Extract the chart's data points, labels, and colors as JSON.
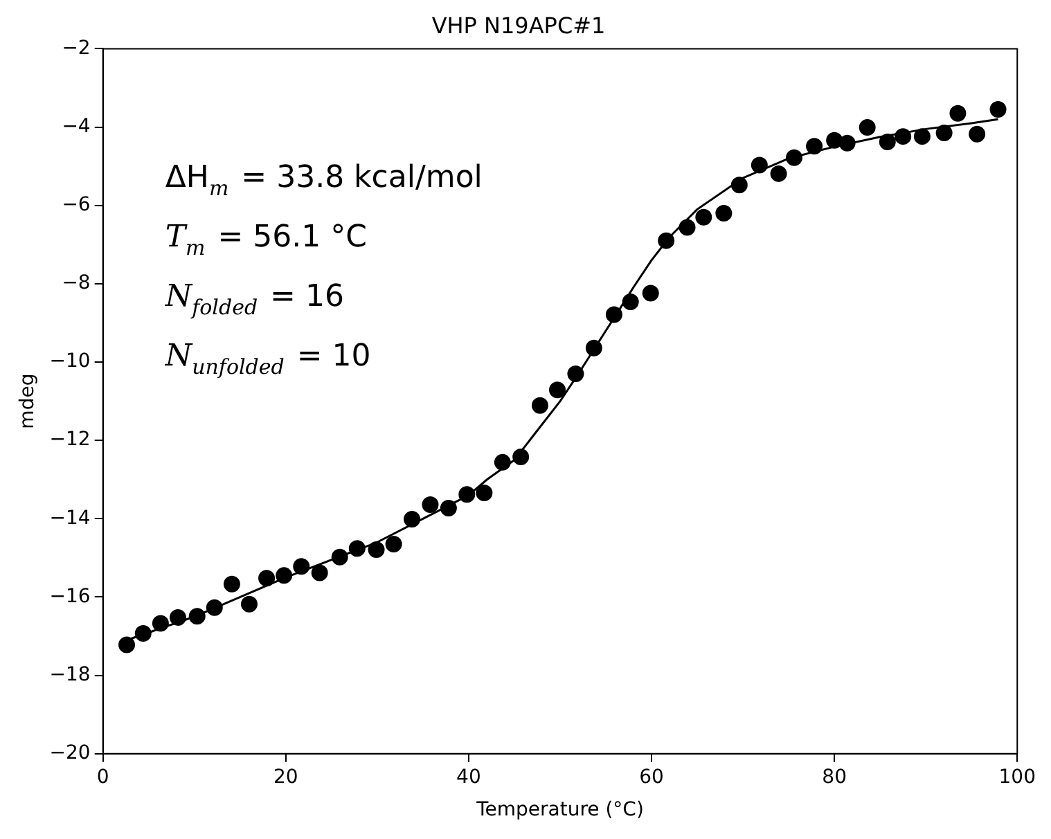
{
  "chart_data": {
    "type": "scatter",
    "title": "VHP N19APC#1",
    "xlabel": "Temperature (°C)",
    "ylabel": "mdeg",
    "annotations": [
      "ΔH$_{m}$ = 33.8 kcal/mol",
      "T$_{m}$ = 56.1 °C",
      "N$_{folded}$ = 16",
      "N$_{unfolded}$ = 10"
    ],
    "xlim": [
      0,
      100
    ],
    "xticks": [
      0,
      20,
      40,
      60,
      80,
      100
    ],
    "ylim": [
      -20,
      -2
    ],
    "yticks": [
      -20,
      -18,
      -16,
      -14,
      -12,
      -10,
      -8,
      -6,
      -4,
      -2
    ],
    "grid": false,
    "legend": false,
    "series": [
      {
        "type": "scatter",
        "marker": "circle",
        "color": "#000000",
        "x": [
          2.6,
          4.4,
          6.3,
          8.2,
          10.3,
          12.2,
          14.1,
          16.0,
          17.9,
          19.8,
          21.7,
          23.7,
          25.9,
          27.8,
          29.9,
          31.8,
          33.8,
          35.8,
          37.8,
          39.8,
          41.7,
          43.7,
          45.7,
          47.8,
          49.7,
          51.7,
          53.7,
          55.9,
          57.7,
          59.9,
          61.6,
          63.9,
          65.7,
          67.9,
          69.6,
          71.8,
          73.9,
          75.6,
          77.8,
          80.0,
          81.4,
          83.6,
          85.8,
          87.5,
          89.6,
          92.0,
          93.5,
          95.6,
          97.9
        ],
        "values": [
          -17.22,
          -16.93,
          -16.67,
          -16.52,
          -16.49,
          -16.27,
          -15.67,
          -16.18,
          -15.52,
          -15.45,
          -15.22,
          -15.38,
          -14.98,
          -14.76,
          -14.79,
          -14.65,
          -14.01,
          -13.64,
          -13.73,
          -13.38,
          -13.34,
          -12.56,
          -12.42,
          -11.11,
          -10.71,
          -10.3,
          -9.64,
          -8.79,
          -8.46,
          -8.24,
          -6.9,
          -6.56,
          -6.3,
          -6.2,
          -5.48,
          -4.97,
          -5.19,
          -4.78,
          -4.49,
          -4.34,
          -4.41,
          -4.01,
          -4.38,
          -4.24,
          -4.24,
          -4.15,
          -3.65,
          -4.18,
          -3.55
        ]
      },
      {
        "type": "line",
        "marker": "none",
        "line_style": "solid",
        "color": "#000000",
        "x": [
          2.6,
          10,
          20,
          30,
          35,
          40,
          42,
          45,
          47,
          50,
          52,
          55,
          56.1,
          58,
          60,
          62,
          65,
          70,
          75,
          80,
          85,
          90,
          95,
          97.9
        ],
        "values": [
          -17.1,
          -16.5,
          -15.5,
          -14.6,
          -14.0,
          -13.4,
          -13.0,
          -12.5,
          -11.9,
          -11.0,
          -10.3,
          -9.2,
          -8.8,
          -8.1,
          -7.4,
          -6.8,
          -6.1,
          -5.3,
          -4.8,
          -4.5,
          -4.25,
          -4.05,
          -3.9,
          -3.8
        ]
      }
    ]
  }
}
